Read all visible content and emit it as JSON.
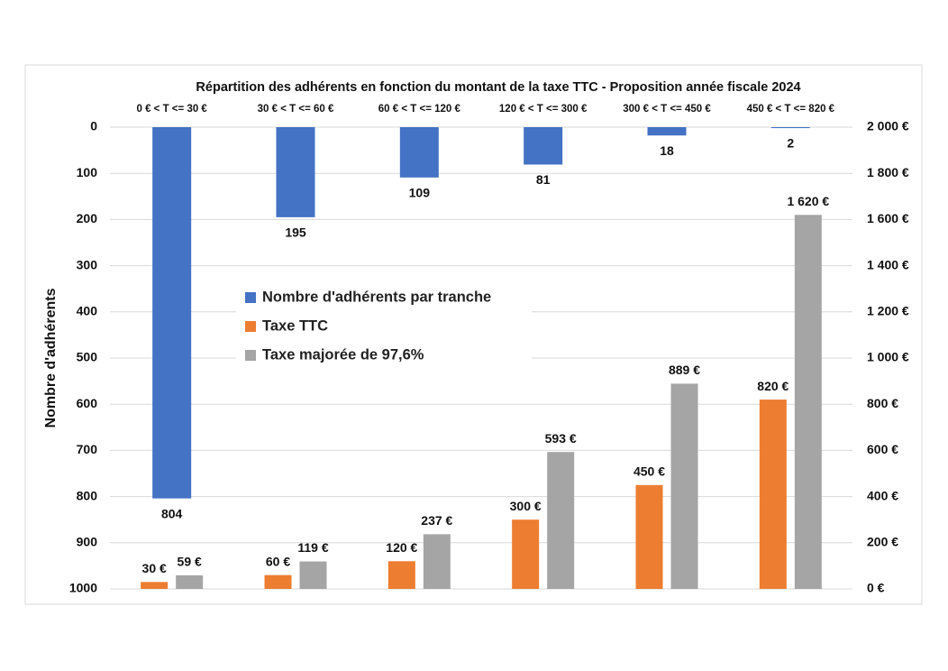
{
  "chart_data": {
    "type": "bar",
    "title": "Répartition des adhérents en fonction du montant de la taxe TTC - Proposition année fiscale 2024",
    "y_label": "Nombre d'adhérents",
    "categories": [
      "0 € <  T <=  30 €",
      "30 € <  T <=  60 €",
      "60 € <  T <=  120 €",
      "120 € <  T <=  300 €",
      "300 € <  T <=  450 €",
      "450 € <  T <=  820 €"
    ],
    "series": [
      {
        "name": "Nombre d'adhérents par tranche",
        "color": "#4472c4",
        "axis": "y",
        "values": [
          804,
          195,
          109,
          81,
          18,
          2
        ]
      },
      {
        "name": "Taxe TTC",
        "color": "#ed7d31",
        "axis": "y2",
        "values": [
          30,
          60,
          120,
          300,
          450,
          820
        ],
        "value_labels": [
          "30 €",
          "60 €",
          "120 €",
          "300 €",
          "450 €",
          "820 €"
        ]
      },
      {
        "name": "Taxe majorée de 97,6%",
        "color": "#a5a5a5",
        "axis": "y2",
        "values": [
          59,
          119,
          237,
          593,
          889,
          1620
        ],
        "value_labels": [
          "59 €",
          "119 €",
          "237 €",
          "593 €",
          "889 €",
          "1 620 €"
        ]
      }
    ],
    "ylim": [
      1000,
      0
    ],
    "yticks": [
      0,
      100,
      200,
      300,
      400,
      500,
      600,
      700,
      800,
      900,
      1000
    ],
    "y2lim": [
      0,
      2000
    ],
    "y2ticks": [
      {
        "value": 0,
        "label": "0 €"
      },
      {
        "value": 200,
        "label": "200 €"
      },
      {
        "value": 400,
        "label": "400 €"
      },
      {
        "value": 600,
        "label": "600 €"
      },
      {
        "value": 800,
        "label": "800 €"
      },
      {
        "value": 1000,
        "label": "1 000 €"
      },
      {
        "value": 1200,
        "label": "1 200 €"
      },
      {
        "value": 1400,
        "label": "1 400 €"
      },
      {
        "value": 1600,
        "label": "1 600 €"
      },
      {
        "value": 1800,
        "label": "1 800 €"
      },
      {
        "value": 2000,
        "label": "2 000 €"
      }
    ],
    "grid": true,
    "legend": "center-left"
  }
}
